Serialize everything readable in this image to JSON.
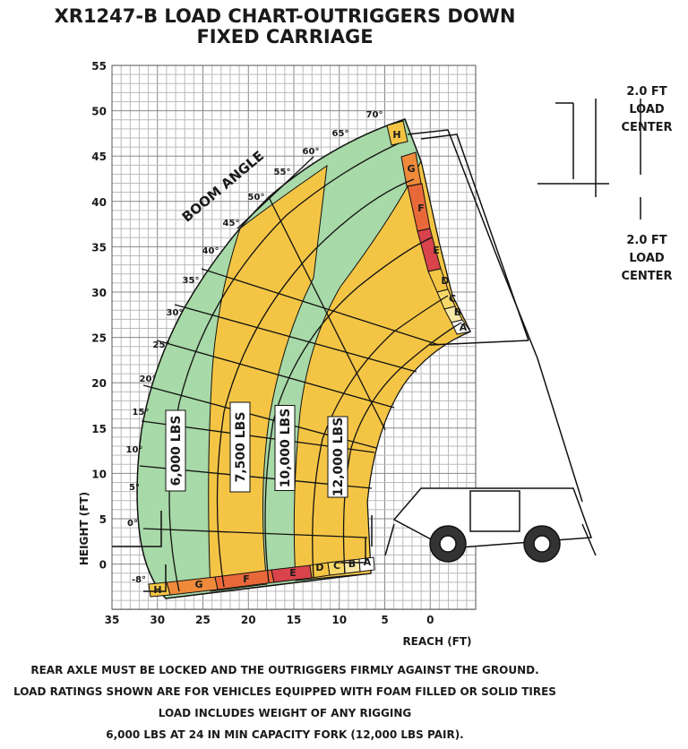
{
  "title": [
    "XR1247-B LOAD CHART-OUTRIGGERS DOWN",
    "FIXED CARRIAGE"
  ],
  "y_axis": {
    "label": "HEIGHT (FT)",
    "ticks": [
      "55",
      "50",
      "45",
      "40",
      "35",
      "30",
      "25",
      "20",
      "15",
      "10",
      "5",
      "0"
    ]
  },
  "x_axis": {
    "label": "REACH (FT)",
    "ticks": [
      "35",
      "30",
      "25",
      "20",
      "15",
      "10",
      "5",
      "0"
    ]
  },
  "boom_angle": {
    "label": "BOOM ANGLE",
    "angles": [
      "-8°",
      "0°",
      "5°",
      "10°",
      "15°",
      "20°",
      "25°",
      "30°",
      "35°",
      "40°",
      "45°",
      "50°",
      "55°",
      "60°",
      "65°",
      "70°"
    ]
  },
  "zones_bottom": [
    "H",
    "G",
    "F",
    "E",
    "D",
    "C",
    "B",
    "A"
  ],
  "zones_right": [
    "H",
    "G",
    "F",
    "E",
    "D",
    "C",
    "B",
    "A"
  ],
  "loads": [
    "6,000 LBS",
    "7,500 LBS",
    "10,000 LBS",
    "12,000 LBS"
  ],
  "load_center_top": [
    "2.0 FT",
    "LOAD",
    "CENTER"
  ],
  "load_center_bottom": [
    "2.0 FT",
    "LOAD",
    "CENTER"
  ],
  "notes": [
    "REAR AXLE MUST BE LOCKED AND THE OUTRIGGERS FIRMLY AGAINST THE GROUND.",
    "LOAD RATINGS SHOWN ARE FOR VEHICLES EQUIPPED WITH FOAM FILLED OR SOLID TIRES",
    "LOAD INCLUDES WEIGHT OF ANY RIGGING",
    "6,000 LBS AT 24 IN MIN CAPACITY FORK (12,000 LBS PAIR)."
  ]
}
